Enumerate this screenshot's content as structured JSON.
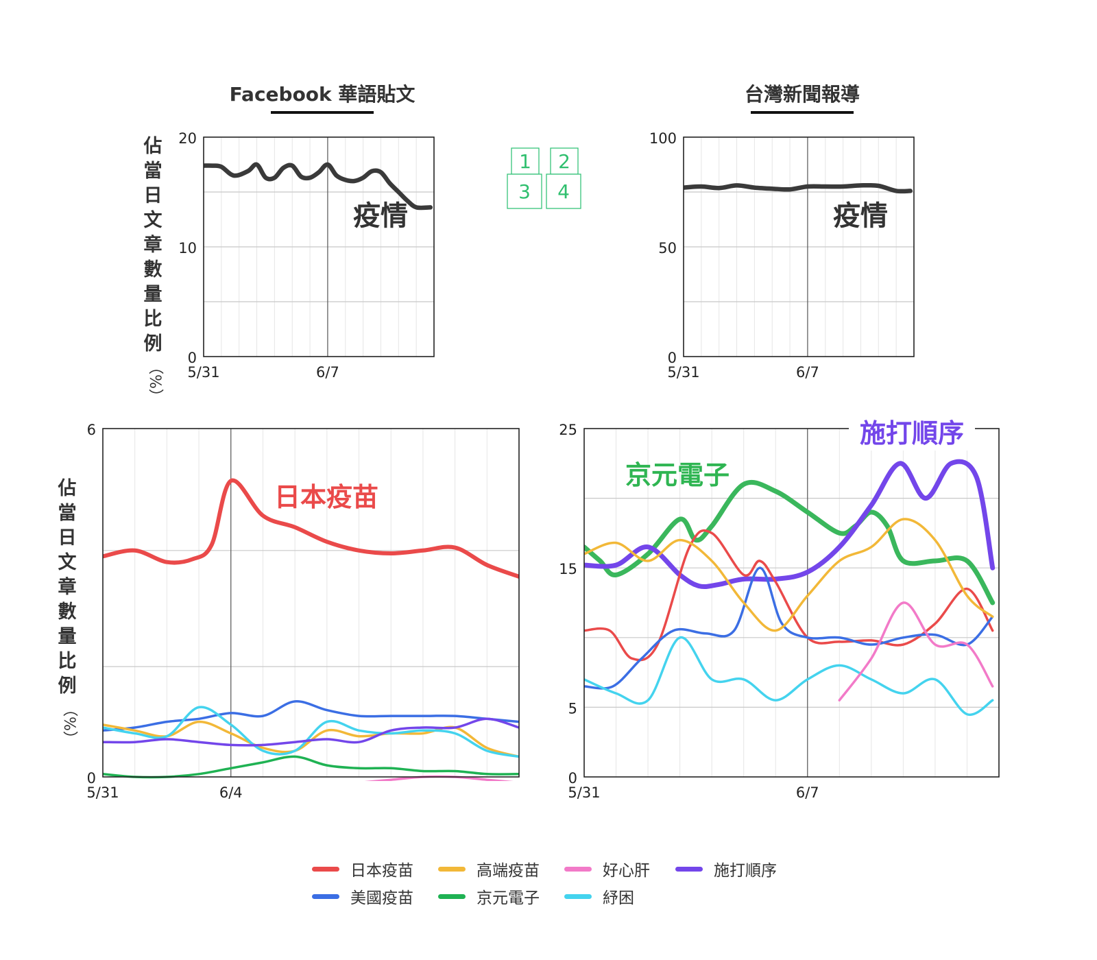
{
  "panel_titles": {
    "left": "Facebook 華語貼文",
    "right": "台灣新聞報導"
  },
  "ylabel": {
    "text": "佔當日文章數量比例",
    "unit": "（%）"
  },
  "grid_index": [
    "1",
    "2",
    "3",
    "4"
  ],
  "chart_data": [
    {
      "id": "fb_pandemic",
      "type": "line",
      "title": "疫情",
      "xticks": [
        "5/31",
        "6/7"
      ],
      "ylim": [
        0,
        20
      ],
      "yticks": [
        0,
        10,
        20
      ],
      "series": [
        {
          "name": "疫情",
          "color": "#3a3a3a",
          "x": [
            0,
            0.5,
            1,
            1.7,
            2.5,
            3,
            3.5,
            4,
            4.5,
            5,
            5.5,
            6,
            6.5,
            7,
            7.5,
            8,
            8.5,
            9,
            9.5,
            10,
            10.5,
            11,
            11.5,
            12,
            12.8
          ],
          "y": [
            17.4,
            17.4,
            17.3,
            16.5,
            16.9,
            17.5,
            16.3,
            16.3,
            17.2,
            17.4,
            16.4,
            16.3,
            16.8,
            17.5,
            16.5,
            16.1,
            16.0,
            16.3,
            16.9,
            16.8,
            15.8,
            15.0,
            14.2,
            13.6,
            13.6
          ]
        }
      ]
    },
    {
      "id": "news_pandemic",
      "type": "line",
      "title": "疫情",
      "xticks": [
        "5/31",
        "6/7"
      ],
      "ylim": [
        0,
        100
      ],
      "yticks": [
        0,
        50,
        100
      ],
      "series": [
        {
          "name": "疫情",
          "color": "#3a3a3a",
          "x": [
            0,
            1,
            2,
            3,
            4,
            5,
            6,
            7,
            8,
            9,
            10,
            11,
            12,
            12.8
          ],
          "y": [
            77,
            77.5,
            76.8,
            78,
            77,
            76.5,
            76.2,
            77.5,
            77.5,
            77.5,
            78,
            77.8,
            75.5,
            75.5
          ]
        }
      ]
    },
    {
      "id": "fb_topics",
      "type": "line",
      "xticks": [
        "5/31",
        "6/4"
      ],
      "ylim": [
        0,
        6
      ],
      "yticks": [
        0,
        6
      ],
      "series": [
        {
          "name": "日本疫苗",
          "color": "#ea4a4a",
          "width": 6,
          "x": [
            0,
            1,
            2,
            2.8,
            3.4,
            4,
            5,
            6,
            7,
            8,
            9,
            10,
            11,
            12,
            13
          ],
          "y": [
            3.8,
            3.9,
            3.7,
            3.75,
            4.0,
            5.1,
            4.5,
            4.3,
            4.05,
            3.9,
            3.85,
            3.9,
            3.95,
            3.65,
            3.45
          ]
        },
        {
          "name": "美國疫苗",
          "color": "#3b6ee4",
          "width": 3.5,
          "x": [
            0,
            1,
            2,
            3,
            4,
            5,
            6,
            7,
            8,
            9,
            10,
            11,
            12,
            13
          ],
          "y": [
            0.8,
            0.85,
            0.95,
            1.0,
            1.1,
            1.05,
            1.3,
            1.15,
            1.05,
            1.05,
            1.05,
            1.05,
            1.0,
            0.95
          ]
        },
        {
          "name": "高端疫苗",
          "color": "#f2b838",
          "width": 3.5,
          "x": [
            0,
            1,
            2,
            3,
            4,
            5,
            6,
            7,
            8,
            9,
            10,
            11,
            12,
            13
          ],
          "y": [
            0.9,
            0.8,
            0.7,
            0.95,
            0.75,
            0.5,
            0.45,
            0.8,
            0.7,
            0.75,
            0.75,
            0.85,
            0.5,
            0.35
          ]
        },
        {
          "name": "京元電子",
          "color": "#1fb253",
          "width": 3.5,
          "x": [
            0,
            1,
            2,
            3,
            4,
            5,
            6,
            7,
            8,
            9,
            10,
            11,
            12,
            13
          ],
          "y": [
            0.05,
            0.0,
            0.0,
            0.05,
            0.15,
            0.25,
            0.35,
            0.2,
            0.15,
            0.15,
            0.1,
            0.1,
            0.05,
            0.05
          ]
        },
        {
          "name": "紓困",
          "color": "#44d3ee",
          "width": 3.5,
          "x": [
            0,
            1,
            2,
            3,
            4,
            5,
            6,
            7,
            8,
            9,
            10,
            11,
            12,
            13
          ],
          "y": [
            0.85,
            0.75,
            0.7,
            1.2,
            0.9,
            0.45,
            0.45,
            0.95,
            0.8,
            0.75,
            0.8,
            0.75,
            0.45,
            0.35
          ]
        },
        {
          "name": "施打順序",
          "color": "#7346ea",
          "width": 3.5,
          "x": [
            0,
            1,
            2,
            3,
            4,
            5,
            6,
            7,
            8,
            9,
            10,
            11,
            12,
            13
          ],
          "y": [
            0.6,
            0.6,
            0.65,
            0.6,
            0.55,
            0.55,
            0.6,
            0.65,
            0.6,
            0.8,
            0.85,
            0.85,
            1.0,
            0.85
          ]
        },
        {
          "name": "好心肝",
          "color": "#f27ac8",
          "width": 3.5,
          "x": [
            8,
            9,
            10,
            11,
            12,
            13
          ],
          "y": [
            -0.1,
            -0.05,
            0.0,
            0.0,
            -0.05,
            -0.1
          ]
        }
      ],
      "labels": [
        {
          "text": "日本疫苗",
          "color": "#ea4a4a"
        }
      ]
    },
    {
      "id": "news_topics",
      "type": "line",
      "xticks": [
        "5/31",
        "6/7"
      ],
      "ylim": [
        0,
        25
      ],
      "yticks": [
        0,
        5,
        15,
        25
      ],
      "series": [
        {
          "name": "京元電子",
          "color": "#3ab75c",
          "width": 7,
          "x": [
            0,
            0.5,
            1,
            2,
            3,
            3.5,
            4,
            5,
            6,
            7,
            8,
            8.5,
            9,
            9.5,
            10,
            11,
            12,
            12.8
          ],
          "y": [
            16.5,
            15.5,
            14.5,
            16,
            18.5,
            17,
            18,
            21,
            20.5,
            19,
            17.5,
            18,
            19,
            18,
            15.5,
            15.5,
            15.5,
            12.5
          ]
        },
        {
          "name": "施打順序",
          "color": "#7346ea",
          "width": 7,
          "x": [
            0,
            1,
            2,
            3,
            3.6,
            4.2,
            5,
            6,
            7,
            8,
            9,
            9.9,
            10.7,
            11.5,
            12.3,
            12.8
          ],
          "y": [
            15.2,
            15.2,
            16.5,
            14.5,
            13.7,
            13.8,
            14.2,
            14.2,
            14.7,
            16.5,
            19.5,
            22.5,
            20,
            22.5,
            21.5,
            15
          ]
        },
        {
          "name": "日本疫苗",
          "color": "#ea4a4a",
          "width": 3.5,
          "x": [
            0,
            0.8,
            1.5,
            2.3,
            3.3,
            4,
            5,
            5.5,
            6,
            7,
            8,
            9,
            10,
            11,
            12,
            12.8
          ],
          "y": [
            10.5,
            10.5,
            8.5,
            9.5,
            16.5,
            17.5,
            14.5,
            15.5,
            14,
            10,
            9.7,
            9.8,
            9.5,
            11,
            13.5,
            10.5
          ]
        },
        {
          "name": "美國疫苗",
          "color": "#3b6ee4",
          "width": 3.5,
          "x": [
            0,
            0.9,
            1.8,
            2.8,
            3.8,
            4.7,
            5.5,
            6.2,
            7,
            8,
            9,
            10,
            11,
            12,
            12.8
          ],
          "y": [
            6.5,
            6.5,
            8.5,
            10.5,
            10.3,
            10.5,
            15,
            11,
            10,
            10,
            9.5,
            10,
            10.2,
            9.5,
            11.5
          ]
        },
        {
          "name": "高端疫苗",
          "color": "#f2b838",
          "width": 3.5,
          "x": [
            0,
            1,
            2,
            3,
            4,
            5,
            6,
            7,
            8,
            9,
            10,
            11,
            12,
            12.8
          ],
          "y": [
            16,
            16.8,
            15.5,
            17,
            15.5,
            12.5,
            10.5,
            13,
            15.5,
            16.5,
            18.5,
            17,
            13,
            11.5
          ]
        },
        {
          "name": "紓困",
          "color": "#44d3ee",
          "width": 3.5,
          "x": [
            0,
            1,
            2,
            3,
            4,
            5,
            6,
            7,
            8,
            9,
            10,
            11,
            12,
            12.8
          ],
          "y": [
            7,
            6,
            5.5,
            10,
            7,
            7,
            5.5,
            7,
            8,
            7,
            6,
            7,
            4.5,
            5.5
          ]
        },
        {
          "name": "好心肝",
          "color": "#f27ac8",
          "width": 3.5,
          "x": [
            8,
            9,
            10,
            11,
            12,
            12.8
          ],
          "y": [
            5.5,
            8.5,
            12.5,
            9.5,
            9.5,
            6.5
          ]
        }
      ],
      "labels": [
        {
          "text": "京元電子",
          "color": "#2fb552"
        },
        {
          "text": "施打順序",
          "color": "#7346ea"
        }
      ]
    }
  ],
  "legend": [
    {
      "name": "日本疫苗",
      "color": "#ea4a4a"
    },
    {
      "name": "高端疫苗",
      "color": "#f2b838"
    },
    {
      "name": "好心肝",
      "color": "#f27ac8"
    },
    {
      "name": "施打順序",
      "color": "#7346ea"
    },
    {
      "name": "美國疫苗",
      "color": "#3b6ee4"
    },
    {
      "name": "京元電子",
      "color": "#1fb253"
    },
    {
      "name": "紓困",
      "color": "#44d3ee"
    }
  ]
}
